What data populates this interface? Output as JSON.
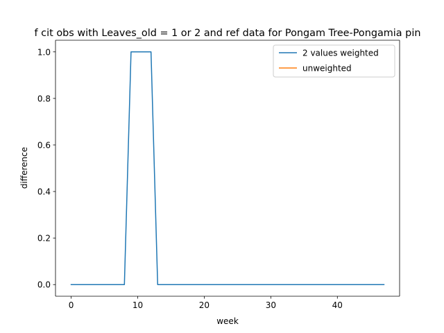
{
  "chart_data": {
    "type": "line",
    "title": "f cit obs with Leaves_old = 1 or 2 and ref data for Pongam Tree-Pongamia pin",
    "xlabel": "week",
    "ylabel": "difference",
    "xlim": [
      -2.35,
      49.35
    ],
    "ylim": [
      -0.05,
      1.05
    ],
    "xticks": [
      0,
      10,
      20,
      30,
      40
    ],
    "xtick_labels": [
      "0",
      "10",
      "20",
      "30",
      "40"
    ],
    "yticks": [
      0.0,
      0.2,
      0.4,
      0.6,
      0.8,
      1.0
    ],
    "ytick_labels": [
      "0.0",
      "0.2",
      "0.4",
      "0.6",
      "0.8",
      "1.0"
    ],
    "legend_position": "top-right",
    "series": [
      {
        "name": "2 values weighted",
        "color": "#1f77b4",
        "x": [
          0,
          1,
          2,
          3,
          4,
          5,
          6,
          7,
          8,
          9,
          10,
          11,
          12,
          13,
          14,
          15,
          16,
          17,
          18,
          19,
          20,
          21,
          22,
          23,
          24,
          25,
          26,
          27,
          28,
          29,
          30,
          31,
          32,
          33,
          34,
          35,
          36,
          37,
          38,
          39,
          40,
          41,
          42,
          43,
          44,
          45,
          46,
          47
        ],
        "y": [
          0,
          0,
          0,
          0,
          0,
          0,
          0,
          0,
          0,
          1,
          1,
          1,
          1,
          0,
          0,
          0,
          0,
          0,
          0,
          0,
          0,
          0,
          0,
          0,
          0,
          0,
          0,
          0,
          0,
          0,
          0,
          0,
          0,
          0,
          0,
          0,
          0,
          0,
          0,
          0,
          0,
          0,
          0,
          0,
          0,
          0,
          0,
          0
        ]
      },
      {
        "name": "unweighted",
        "color": "#ff7f0e",
        "x": [],
        "y": []
      }
    ]
  }
}
